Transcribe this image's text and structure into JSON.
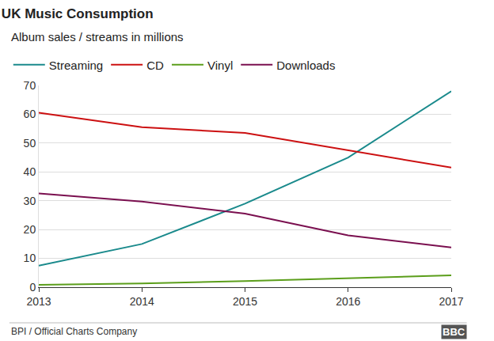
{
  "chart_data": {
    "type": "line",
    "title": "UK Music Consumption",
    "subtitle": "Album sales / streams in millions",
    "source": "BPI / Official Charts Company",
    "credit": "BBC",
    "x": [
      2013,
      2014,
      2015,
      2016,
      2017
    ],
    "xlim": [
      2013,
      2017
    ],
    "xticks": [
      2013,
      2014,
      2015,
      2016,
      2017
    ],
    "ylim": [
      0,
      70
    ],
    "yticks": [
      0,
      10,
      20,
      30,
      40,
      50,
      60,
      70
    ],
    "grid": true,
    "legend": "top",
    "series": [
      {
        "name": "Streaming",
        "color": "#1a8a8c",
        "values": [
          7.5,
          15,
          29,
          45,
          68
        ]
      },
      {
        "name": "CD",
        "color": "#cc1011",
        "values": [
          60.5,
          55.5,
          53.5,
          47.5,
          41.5
        ]
      },
      {
        "name": "Vinyl",
        "color": "#5b9e1b",
        "values": [
          0.8,
          1.3,
          2.1,
          3.2,
          4.1
        ]
      },
      {
        "name": "Downloads",
        "color": "#7a0f4f",
        "values": [
          32.5,
          29.7,
          25.5,
          18,
          13.8
        ]
      }
    ]
  }
}
